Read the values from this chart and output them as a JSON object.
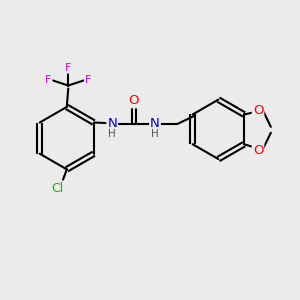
{
  "bg_color": "#ebebeb",
  "bond_color": "#000000",
  "bond_lw": 1.5,
  "atom_colors": {
    "N": "#0000cc",
    "O": "#ff0000",
    "Cl": "#00bb00",
    "F": "#cc00cc",
    "C": "#000000",
    "H": "#555555"
  },
  "font_size": 8.5,
  "fig_bg": "#ebebeb",
  "xlim": [
    0,
    10
  ],
  "ylim": [
    0,
    10
  ]
}
